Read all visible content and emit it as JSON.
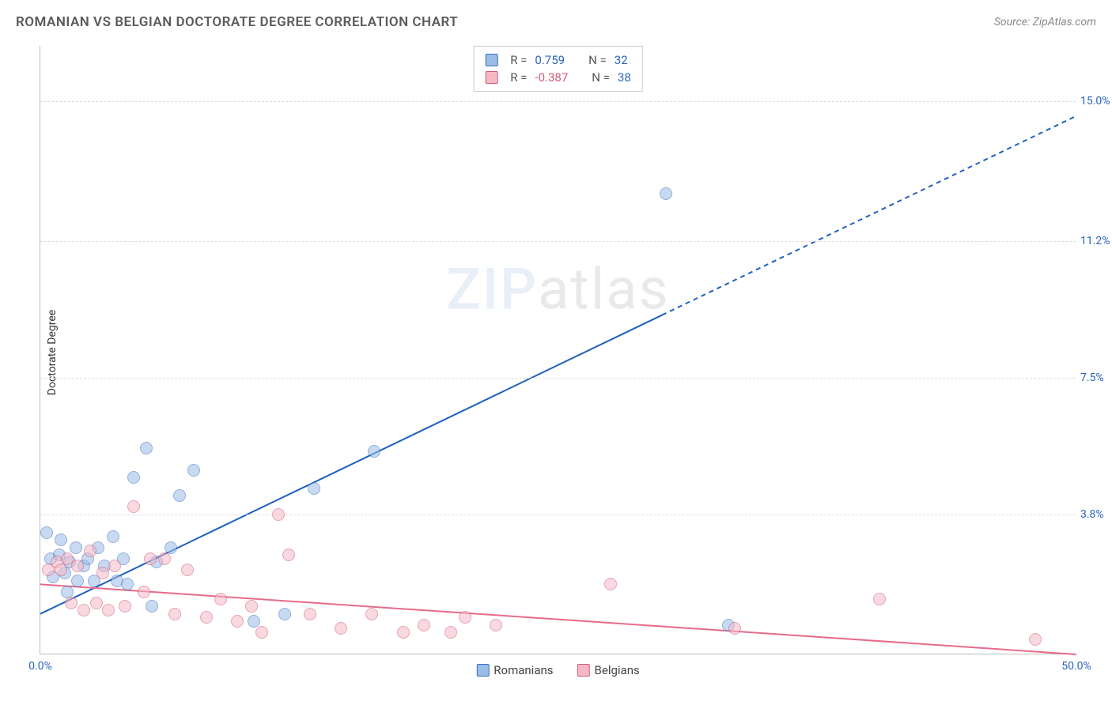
{
  "title": "ROMANIAN VS BELGIAN DOCTORATE DEGREE CORRELATION CHART",
  "source_label": "Source: ZipAtlas.com",
  "y_axis_title": "Doctorate Degree",
  "watermark": {
    "part1": "ZIP",
    "part2": "atlas"
  },
  "chart": {
    "type": "scatter",
    "xlim": [
      0,
      50
    ],
    "ylim": [
      0,
      16.5
    ],
    "background_color": "#ffffff",
    "grid_color": "#dddddd",
    "axis_color": "#bbbbbb",
    "xticks": [
      {
        "x": 0,
        "label": "0.0%",
        "color": "#2b63c0"
      },
      {
        "x": 50,
        "label": "50.0%",
        "color": "#2b63c0"
      }
    ],
    "yticks": [
      {
        "y": 3.8,
        "label": "3.8%",
        "color": "#2b63c0"
      },
      {
        "y": 7.5,
        "label": "7.5%",
        "color": "#2b63c0"
      },
      {
        "y": 11.2,
        "label": "11.2%",
        "color": "#2b63c0"
      },
      {
        "y": 15.0,
        "label": "15.0%",
        "color": "#2b63c0"
      }
    ],
    "marker_size": 16,
    "marker_opacity": 0.55,
    "marker_stroke_opacity": 0.9,
    "marker_stroke_width": 1,
    "series": [
      {
        "key": "romanians",
        "label": "Romanians",
        "fill_color": "#9bbde8",
        "stroke_color": "#3b6fb8",
        "R": "0.759",
        "R_color": "#2b63c0",
        "N": "32",
        "N_color": "#2b63c0",
        "trend": {
          "line_color": "#1e5fbf",
          "line_width": 2,
          "x1": 0,
          "y1": 1.1,
          "x2": 30,
          "y2": 9.2,
          "dash_x1": 30,
          "dash_y1": 9.2,
          "dash_x2": 50,
          "dash_y2": 14.6,
          "dash_pattern": "6,5"
        },
        "points": [
          [
            0.3,
            3.3
          ],
          [
            0.5,
            2.6
          ],
          [
            0.6,
            2.1
          ],
          [
            0.9,
            2.7
          ],
          [
            1.0,
            3.1
          ],
          [
            1.2,
            2.2
          ],
          [
            1.3,
            1.7
          ],
          [
            1.4,
            2.5
          ],
          [
            1.7,
            2.9
          ],
          [
            1.8,
            2.0
          ],
          [
            2.1,
            2.4
          ],
          [
            2.3,
            2.6
          ],
          [
            2.6,
            2.0
          ],
          [
            2.8,
            2.9
          ],
          [
            3.1,
            2.4
          ],
          [
            3.5,
            3.2
          ],
          [
            3.7,
            2.0
          ],
          [
            4.0,
            2.6
          ],
          [
            4.2,
            1.9
          ],
          [
            4.5,
            4.8
          ],
          [
            5.1,
            5.6
          ],
          [
            5.4,
            1.3
          ],
          [
            5.6,
            2.5
          ],
          [
            6.3,
            2.9
          ],
          [
            6.7,
            4.3
          ],
          [
            7.4,
            5.0
          ],
          [
            10.3,
            0.9
          ],
          [
            11.8,
            1.1
          ],
          [
            13.2,
            4.5
          ],
          [
            16.1,
            5.5
          ],
          [
            30.2,
            12.5
          ],
          [
            33.2,
            0.8
          ]
        ]
      },
      {
        "key": "belgians",
        "label": "Belgians",
        "fill_color": "#f5b9c6",
        "stroke_color": "#d05a78",
        "R": "-0.387",
        "R_color": "#d05a78",
        "N": "38",
        "N_color": "#2b63c0",
        "trend": {
          "line_color": "#e86a8a",
          "line_width": 2,
          "x1": 0,
          "y1": 1.9,
          "x2": 50,
          "y2": 0.0,
          "dash_x1": null
        },
        "points": [
          [
            0.4,
            2.3
          ],
          [
            0.8,
            2.5
          ],
          [
            1.0,
            2.3
          ],
          [
            1.3,
            2.6
          ],
          [
            1.5,
            1.4
          ],
          [
            1.8,
            2.4
          ],
          [
            2.1,
            1.2
          ],
          [
            2.4,
            2.8
          ],
          [
            2.7,
            1.4
          ],
          [
            3.0,
            2.2
          ],
          [
            3.3,
            1.2
          ],
          [
            3.6,
            2.4
          ],
          [
            4.1,
            1.3
          ],
          [
            4.5,
            4.0
          ],
          [
            5.0,
            1.7
          ],
          [
            5.3,
            2.6
          ],
          [
            6.0,
            2.6
          ],
          [
            6.5,
            1.1
          ],
          [
            7.1,
            2.3
          ],
          [
            8.0,
            1.0
          ],
          [
            8.7,
            1.5
          ],
          [
            9.5,
            0.9
          ],
          [
            10.2,
            1.3
          ],
          [
            10.7,
            0.6
          ],
          [
            11.5,
            3.8
          ],
          [
            12.0,
            2.7
          ],
          [
            13.0,
            1.1
          ],
          [
            14.5,
            0.7
          ],
          [
            16.0,
            1.1
          ],
          [
            17.5,
            0.6
          ],
          [
            18.5,
            0.8
          ],
          [
            19.8,
            0.6
          ],
          [
            20.5,
            1.0
          ],
          [
            22.0,
            0.8
          ],
          [
            27.5,
            1.9
          ],
          [
            33.5,
            0.7
          ],
          [
            40.5,
            1.5
          ],
          [
            48.0,
            0.4
          ]
        ]
      }
    ],
    "stats_legend": {
      "labels": {
        "R": "R =",
        "N": "N ="
      }
    },
    "label_fontsize": 14,
    "title_fontsize": 17
  }
}
